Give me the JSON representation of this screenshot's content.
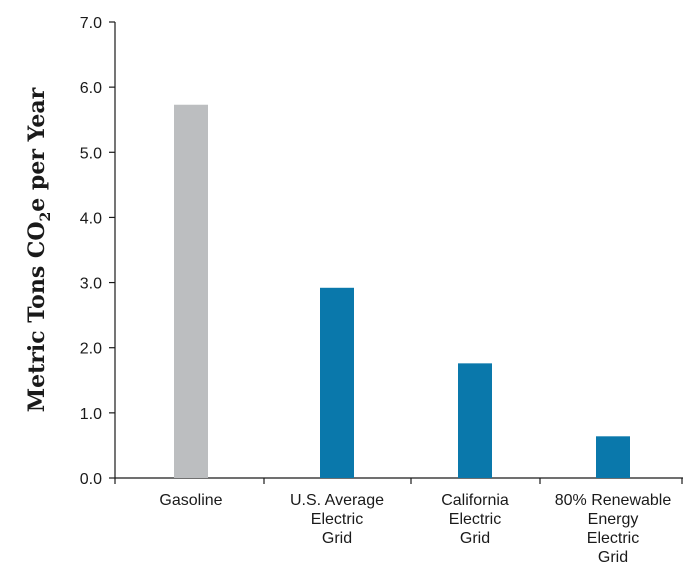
{
  "chart_data": {
    "type": "bar",
    "ylabel": {
      "prefix": "Metric Tons CO",
      "subscript": "2",
      "suffix": "e per Year"
    },
    "xlabel": "",
    "ylim": [
      0,
      7
    ],
    "yticks": [
      "0.0",
      "1.0",
      "2.0",
      "3.0",
      "4.0",
      "5.0",
      "6.0",
      "7.0"
    ],
    "categories": [
      [
        "Gasoline"
      ],
      [
        "U.S. Average",
        "Electric",
        "Grid"
      ],
      [
        "California",
        "Electric",
        "Grid"
      ],
      [
        "80% Renewable",
        "Energy",
        "Electric",
        "Grid"
      ]
    ],
    "values": [
      5.73,
      2.92,
      1.76,
      0.64
    ],
    "colors": [
      "#bcbec0",
      "#0a78ab",
      "#0a78ab",
      "#0a78ab"
    ],
    "grid": false,
    "legend": "none"
  }
}
